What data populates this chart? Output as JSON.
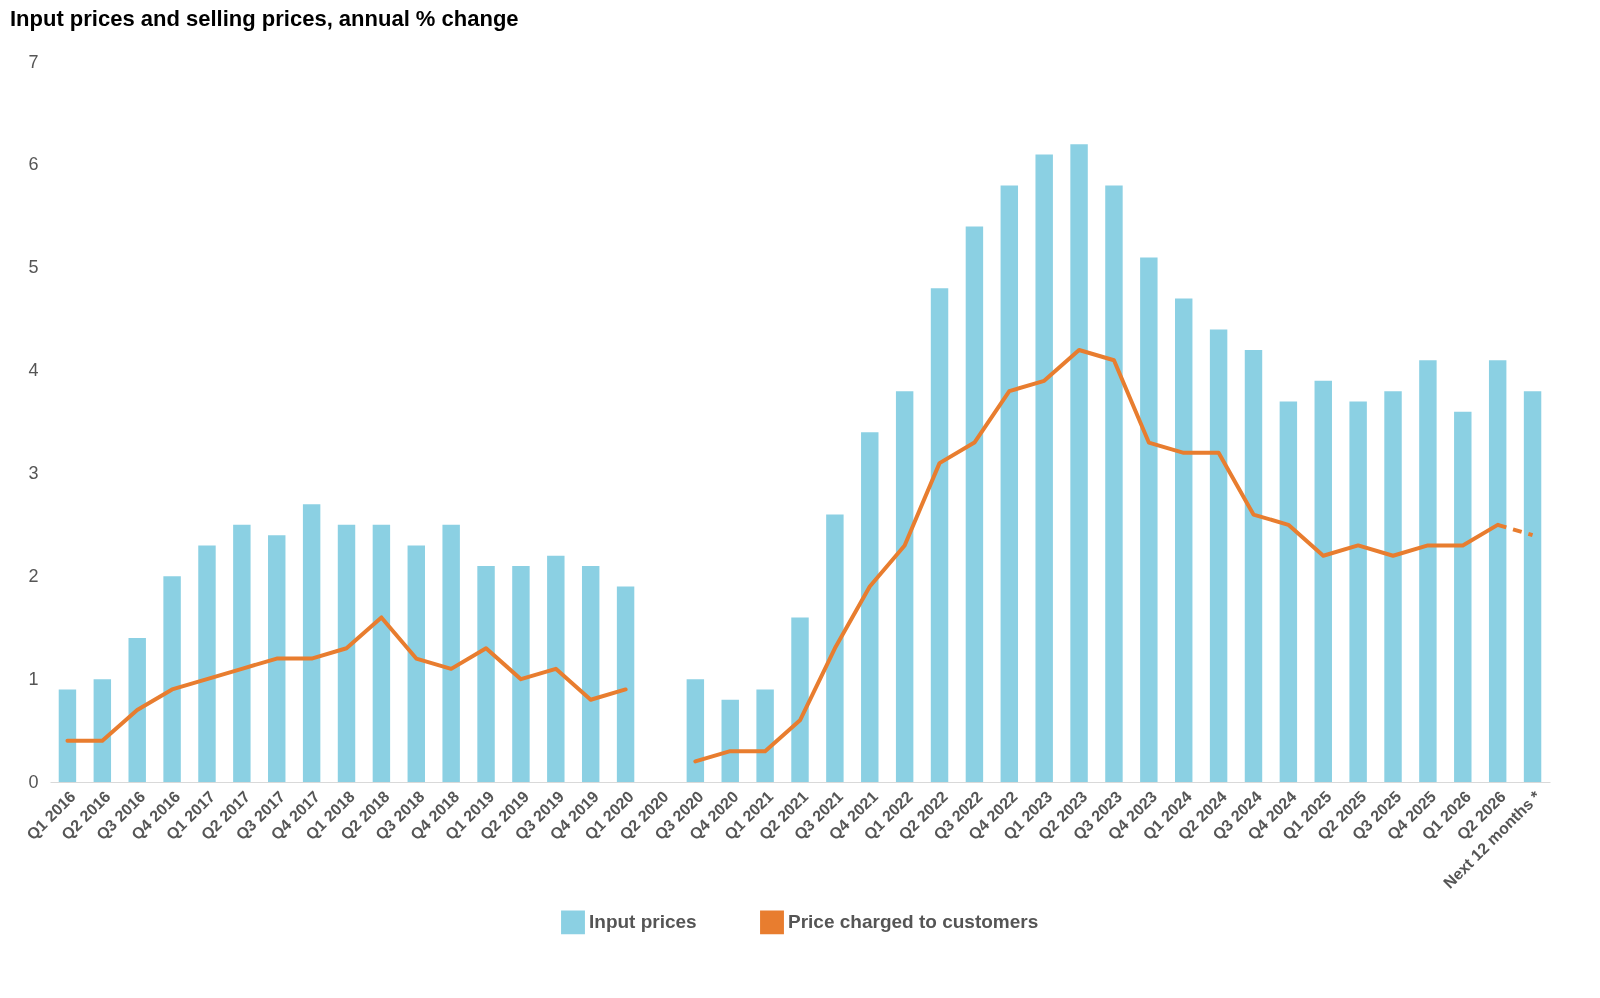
{
  "chart_data": {
    "type": "bar",
    "title": "Input prices and selling prices, annual % change",
    "categories": [
      "Q1 2016",
      "Q2 2016",
      "Q3 2016",
      "Q4 2016",
      "Q1 2017",
      "Q2 2017",
      "Q3 2017",
      "Q4 2017",
      "Q1 2018",
      "Q2 2018",
      "Q3 2018",
      "Q4 2018",
      "Q1 2019",
      "Q2 2019",
      "Q3 2019",
      "Q4 2019",
      "Q1 2020",
      "Q2 2020",
      "Q3 2020",
      "Q4 2020",
      "Q1 2021",
      "Q2 2021",
      "Q3 2021",
      "Q4 2021",
      "Q1 2022",
      "Q2 2022",
      "Q3 2022",
      "Q4 2022",
      "Q1 2023",
      "Q2 2023",
      "Q3 2023",
      "Q4 2023",
      "Q1 2024",
      "Q2 2024",
      "Q3 2024",
      "Q4 2024",
      "Q1 2025",
      "Q2 2025",
      "Q3 2025",
      "Q4 2025",
      "Q1 2026",
      "Q2 2026",
      "Next 12 months *"
    ],
    "series": [
      {
        "name": "Input prices",
        "color": "#8bd0e3",
        "values": [
          0.9,
          1.0,
          1.4,
          2.0,
          2.3,
          2.5,
          2.4,
          2.7,
          2.5,
          2.5,
          2.3,
          2.5,
          2.1,
          2.1,
          2.2,
          2.1,
          1.9,
          null,
          1.0,
          0.8,
          0.9,
          1.6,
          2.6,
          3.4,
          3.8,
          4.8,
          5.4,
          5.8,
          6.1,
          6.2,
          5.8,
          5.1,
          4.7,
          4.4,
          4.2,
          3.7,
          3.9,
          3.7,
          3.8,
          4.1,
          3.6,
          4.1,
          3.8
        ]
      },
      {
        "name": "Price charged to customers",
        "type": "line",
        "color": "#e87d2f",
        "line_style": "solid",
        "values": [
          0.4,
          0.4,
          0.7,
          0.9,
          1.0,
          1.1,
          1.2,
          1.2,
          1.3,
          1.6,
          1.2,
          1.1,
          1.3,
          1.0,
          1.1,
          0.8,
          0.9,
          null,
          0.2,
          0.3,
          0.3,
          0.6,
          1.3,
          1.9,
          2.3,
          3.1,
          3.3,
          3.8,
          3.9,
          4.2,
          4.1,
          3.3,
          3.2,
          3.2,
          2.6,
          2.5,
          2.2,
          2.3,
          2.2,
          2.3,
          2.3,
          2.5,
          null
        ]
      },
      {
        "type": "line",
        "color": "#e87d2f",
        "line_style": "dashed",
        "values": [
          null,
          null,
          null,
          null,
          null,
          null,
          null,
          null,
          null,
          null,
          null,
          null,
          null,
          null,
          null,
          null,
          null,
          null,
          null,
          null,
          null,
          null,
          null,
          null,
          null,
          null,
          null,
          null,
          null,
          null,
          null,
          null,
          null,
          null,
          null,
          null,
          null,
          null,
          null,
          null,
          null,
          2.5,
          2.4
        ]
      }
    ],
    "ylim": [
      0,
      7
    ],
    "yticks": [
      0,
      1,
      2,
      3,
      4,
      5,
      6,
      7
    ],
    "grid": false,
    "legend": "bottom",
    "marker": "none"
  }
}
